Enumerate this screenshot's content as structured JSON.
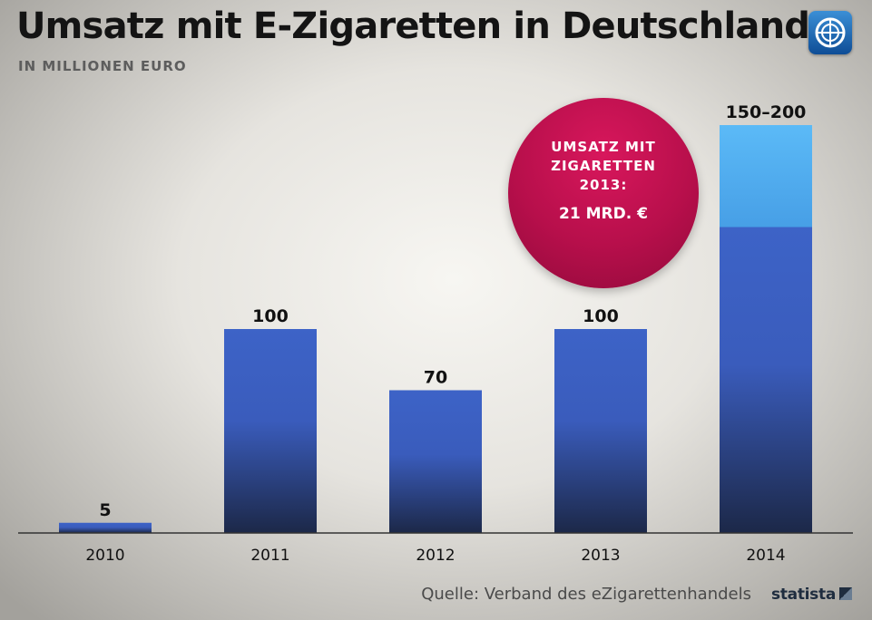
{
  "header": {
    "title": "Umsatz mit E-Zigaretten in Deutschland",
    "subtitle": "IN MILLIONEN EURO"
  },
  "logo": {
    "icon": "tagesschau-globe-icon"
  },
  "callout": {
    "text_lines": [
      "UMSATZ MIT",
      "ZIGARETTEN",
      "2013:"
    ],
    "value": "21 MRD. €",
    "color": "#c01150"
  },
  "footer": {
    "source": "Quelle: Verband des eZigarettenhandels",
    "brand": "statista"
  },
  "colors": {
    "bar_top": "#3d63c7",
    "bar_bottom": "#1c2848",
    "range_light": "#55b3f5",
    "range_dark": "#3a62c8"
  },
  "chart_data": {
    "type": "bar",
    "categories": [
      "2010",
      "2011",
      "2012",
      "2013",
      "2014"
    ],
    "values": [
      5,
      100,
      70,
      100,
      150
    ],
    "range_upper": [
      null,
      null,
      null,
      null,
      200
    ],
    "labels": [
      "5",
      "100",
      "70",
      "100",
      "150–200"
    ],
    "ylim": [
      0,
      200
    ],
    "grid": false,
    "legend": "none",
    "xlabel": "",
    "ylabel": ""
  }
}
